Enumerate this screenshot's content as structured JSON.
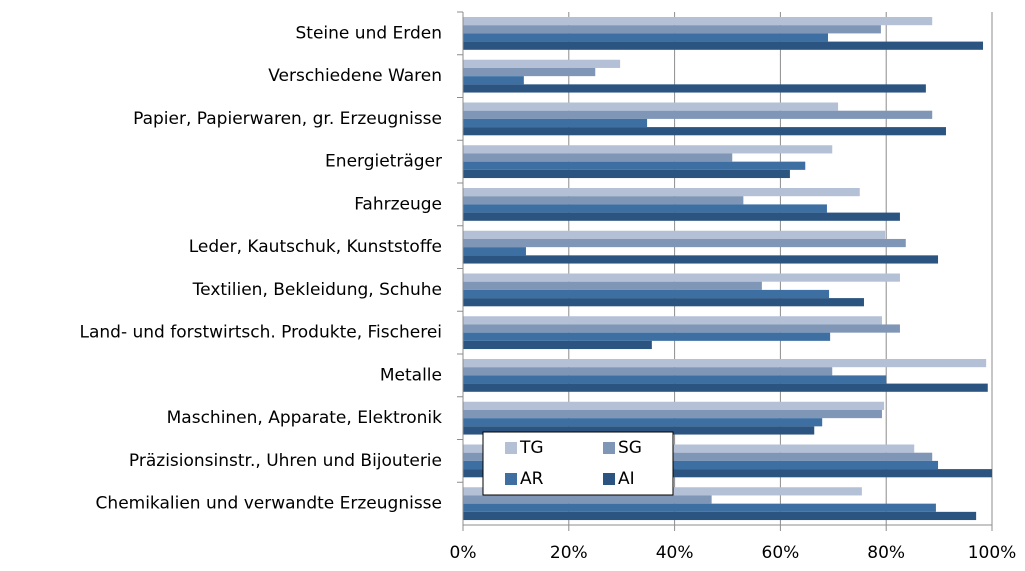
{
  "chart_data": {
    "type": "barh",
    "categories": [
      "Steine und Erden",
      "Verschiedene Waren",
      "Papier, Papierwaren, gr. Erzeugnisse",
      "Energieträger",
      "Fahrzeuge",
      "Leder, Kautschuk, Kunststoffe",
      "Textilien, Bekleidung, Schuhe",
      "Land- und forstwirtsch. Produkte, Fischerei",
      "Metalle",
      "Maschinen, Apparate, Elektronik",
      "Präzisionsinstr., Uhren und Bijouterie",
      "Chemikalien und verwandte Erzeugnisse"
    ],
    "series": [
      {
        "name": "TG",
        "color": "#b4c0d6",
        "values": [
          88.7,
          29.7,
          70.9,
          69.8,
          75,
          79.8,
          82.6,
          79.2,
          98.9,
          79.6,
          85.3,
          75.4
        ]
      },
      {
        "name": "SG",
        "color": "#7f96b6",
        "values": [
          79,
          25,
          88.7,
          50.9,
          53,
          83.7,
          56.5,
          82.6,
          69.8,
          79.2,
          88.7,
          47
        ]
      },
      {
        "name": "AR",
        "color": "#3d6fa3",
        "values": [
          69,
          11.5,
          34.8,
          64.7,
          68.8,
          11.9,
          69.2,
          69.4,
          80,
          67.9,
          89.8,
          89.4
        ]
      },
      {
        "name": "AI",
        "color": "#2b5580",
        "values": [
          98.3,
          87.5,
          91.3,
          61.8,
          82.6,
          89.8,
          75.8,
          35.7,
          99.2,
          66.4,
          100,
          97
        ]
      }
    ],
    "xlim": [
      0,
      100
    ],
    "xticks": [
      {
        "value": 0,
        "label": "0%"
      },
      {
        "value": 20,
        "label": "20%"
      },
      {
        "value": 40,
        "label": "40%"
      },
      {
        "value": 60,
        "label": "60%"
      },
      {
        "value": 80,
        "label": "80%"
      },
      {
        "value": 100,
        "label": "100%"
      }
    ],
    "grid": true,
    "legend": "lower-left"
  }
}
